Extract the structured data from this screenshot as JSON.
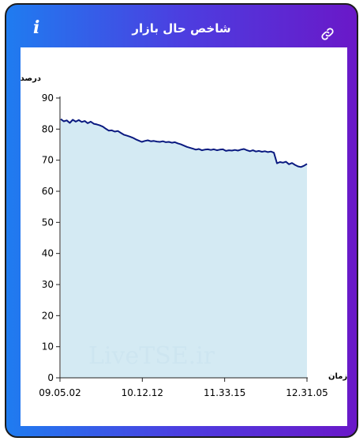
{
  "header": {
    "title": "شاخص حال بازار",
    "info_icon": "i"
  },
  "icons": {
    "info": "info-icon",
    "link": "link-icon"
  },
  "colors": {
    "gradient_start": "#1f7cf0",
    "gradient_end": "#6a18c8",
    "line": "#0a1a80",
    "area": "#cfe8f2"
  },
  "watermark": "LiveTSE.ir",
  "chart_data": {
    "type": "area",
    "ylabel": "درصد",
    "xlabel": "زمان",
    "ylim": [
      0,
      90
    ],
    "yticks": [
      0,
      10,
      20,
      30,
      40,
      50,
      60,
      70,
      80,
      90
    ],
    "xtick_labels": [
      "09.05.02",
      "10.12.12",
      "11.33.15",
      "12.31.05"
    ],
    "grid": false,
    "series": [
      {
        "values": [
          83.2,
          82.5,
          82.8,
          82.0,
          83.0,
          82.4,
          82.9,
          82.3,
          82.6,
          81.9,
          82.4,
          81.7,
          81.5,
          81.2,
          80.8,
          80.1,
          79.5,
          79.6,
          79.2,
          79.4,
          78.8,
          78.2,
          77.9,
          77.6,
          77.2,
          76.7,
          76.3,
          75.9,
          76.2,
          76.4,
          76.1,
          76.2,
          76.0,
          75.9,
          76.1,
          75.8,
          75.9,
          75.6,
          75.8,
          75.4,
          75.1,
          74.7,
          74.3,
          74.0,
          73.7,
          73.4,
          73.6,
          73.2,
          73.4,
          73.5,
          73.3,
          73.5,
          73.2,
          73.4,
          73.5,
          73.0,
          73.2,
          73.1,
          73.3,
          73.1,
          73.4,
          73.6,
          73.2,
          72.9,
          73.2,
          72.8,
          73.0,
          72.7,
          72.9,
          72.6,
          72.8,
          72.4,
          69.0,
          69.4,
          69.2,
          69.5,
          68.7,
          69.1,
          68.5,
          68.0,
          67.8,
          68.2,
          68.8
        ]
      }
    ]
  }
}
